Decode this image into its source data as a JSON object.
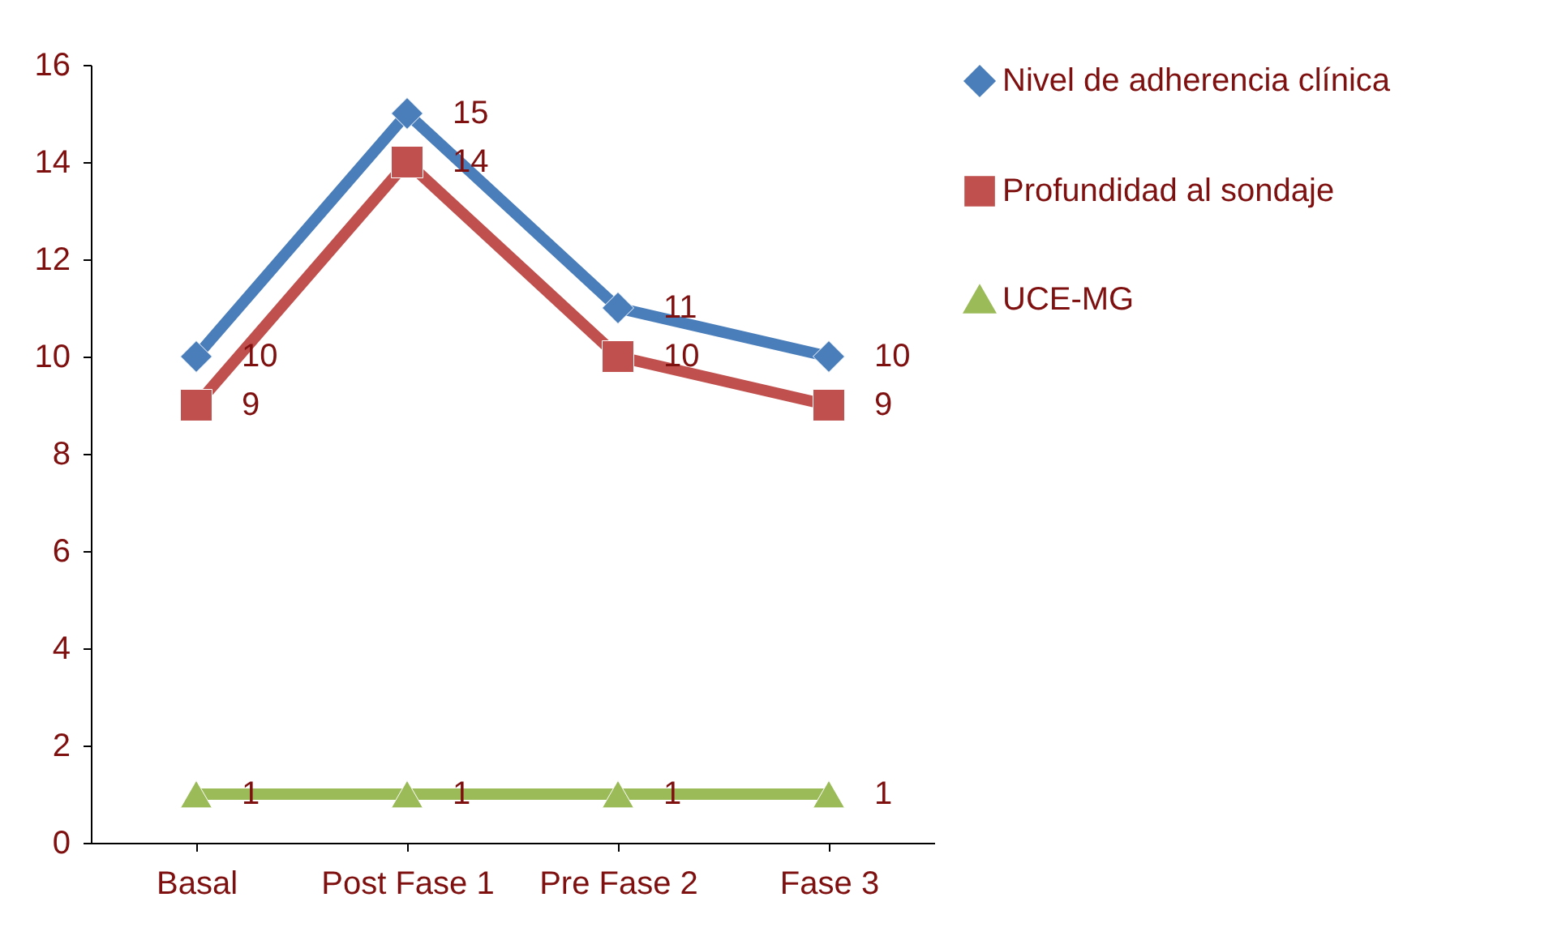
{
  "chart_data": {
    "type": "line",
    "categories": [
      "Basal",
      "Post Fase 1",
      "Pre Fase 2",
      "Fase 3"
    ],
    "series": [
      {
        "name": "Nivel de adherencia clínica",
        "color": "#4a7ebb",
        "marker": "diamond",
        "values": [
          10,
          15,
          11,
          10
        ]
      },
      {
        "name": "Profundidad al sondaje",
        "color": "#c0504d",
        "marker": "square",
        "values": [
          9,
          14,
          10,
          9
        ]
      },
      {
        "name": "UCE-MG",
        "color": "#9bbb59",
        "marker": "triangle",
        "values": [
          1,
          1,
          1,
          1
        ]
      }
    ],
    "ylim": [
      0,
      16
    ],
    "yticks": [
      0,
      2,
      4,
      6,
      8,
      10,
      12,
      14,
      16
    ],
    "grid": false,
    "legend": "right",
    "data_labels": true,
    "line_style": "solid"
  }
}
